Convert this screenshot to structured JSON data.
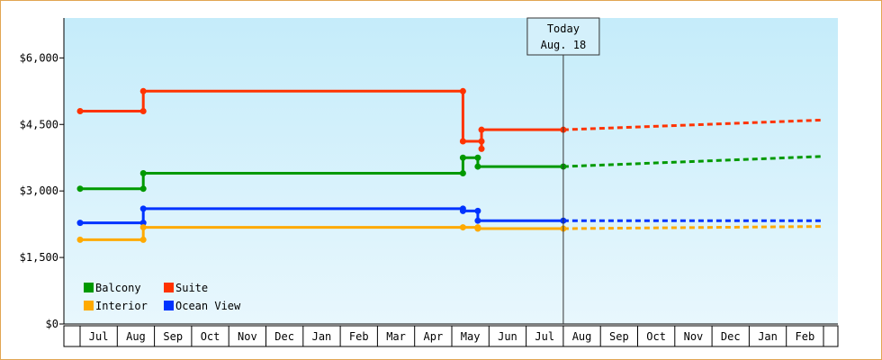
{
  "chart_data": {
    "type": "line",
    "y_ticks": [
      "$6,000",
      "$4,500",
      "$3,000",
      "$1,500",
      "$0"
    ],
    "y_tick_values": [
      6000,
      4500,
      3000,
      1500,
      0
    ],
    "ylim": [
      0,
      6900
    ],
    "month_labels": [
      "Jul",
      "Aug",
      "Sep",
      "Oct",
      "Nov",
      "Dec",
      "Jan",
      "Feb",
      "Mar",
      "Apr",
      "May",
      "Jun",
      "Jul",
      "Aug",
      "Sep",
      "Oct",
      "Nov",
      "Dec",
      "Jan",
      "Feb"
    ],
    "today_label": "Today",
    "today_date": "Aug. 18",
    "today_month_index": 13.0,
    "grid": false,
    "legend_position": "bottom-left",
    "series": [
      {
        "name": "Suite",
        "color": "#ff3300",
        "points": [
          [
            0.0,
            4800
          ],
          [
            1.7,
            4800
          ],
          [
            1.7,
            5250
          ],
          [
            10.3,
            5250
          ],
          [
            10.3,
            4120
          ],
          [
            10.8,
            4120
          ],
          [
            10.8,
            3950
          ],
          [
            10.8,
            4380
          ],
          [
            13.0,
            4380
          ]
        ],
        "forecast": [
          [
            13.0,
            4380
          ],
          [
            20.0,
            4600
          ]
        ]
      },
      {
        "name": "Balcony",
        "color": "#009900",
        "points": [
          [
            0.0,
            3050
          ],
          [
            1.7,
            3050
          ],
          [
            1.7,
            3400
          ],
          [
            10.3,
            3400
          ],
          [
            10.3,
            3750
          ],
          [
            10.7,
            3750
          ],
          [
            10.7,
            3550
          ],
          [
            13.0,
            3550
          ]
        ],
        "forecast": [
          [
            13.0,
            3550
          ],
          [
            20.0,
            3780
          ]
        ]
      },
      {
        "name": "Ocean View",
        "color": "#0033ff",
        "points": [
          [
            0.0,
            2280
          ],
          [
            1.7,
            2280
          ],
          [
            1.7,
            2600
          ],
          [
            10.3,
            2600
          ],
          [
            10.3,
            2550
          ],
          [
            10.7,
            2550
          ],
          [
            10.7,
            2330
          ],
          [
            13.0,
            2330
          ]
        ],
        "forecast": [
          [
            13.0,
            2330
          ],
          [
            20.0,
            2330
          ]
        ]
      },
      {
        "name": "Interior",
        "color": "#ffaa00",
        "points": [
          [
            0.0,
            1900
          ],
          [
            1.7,
            1900
          ],
          [
            1.7,
            2180
          ],
          [
            10.3,
            2180
          ],
          [
            10.7,
            2180
          ],
          [
            10.7,
            2150
          ],
          [
            13.0,
            2150
          ]
        ],
        "forecast": [
          [
            13.0,
            2150
          ],
          [
            20.0,
            2200
          ]
        ]
      }
    ],
    "legend": [
      {
        "name": "Balcony",
        "color": "#009900"
      },
      {
        "name": "Suite",
        "color": "#ff3300"
      },
      {
        "name": "Interior",
        "color": "#ffaa00"
      },
      {
        "name": "Ocean View",
        "color": "#0033ff"
      }
    ]
  }
}
